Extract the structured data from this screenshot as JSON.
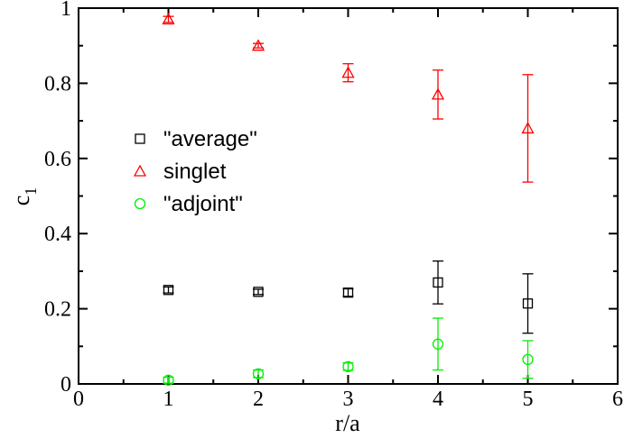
{
  "chart_data": {
    "type": "scatter",
    "xlabel": "r/a",
    "ylabel_main": "c",
    "ylabel_sub": "1",
    "xlim": [
      0,
      6
    ],
    "ylim": [
      0,
      1
    ],
    "xticks": [
      0,
      1,
      2,
      3,
      4,
      5,
      6
    ],
    "yticks": [
      0,
      0.2,
      0.4,
      0.6,
      0.8,
      1
    ],
    "xtick_labels": [
      "0",
      "1",
      "2",
      "3",
      "4",
      "5",
      "6"
    ],
    "ytick_labels": [
      "0",
      "0.2",
      "0.4",
      "0.6",
      "0.8",
      "1"
    ],
    "grid": false,
    "legend_placement": "center-left",
    "series": [
      {
        "name": "\"average\"",
        "marker": "square",
        "color": "#000000",
        "x": [
          1,
          2,
          3,
          4,
          5
        ],
        "y": [
          0.25,
          0.245,
          0.243,
          0.27,
          0.214
        ],
        "err": [
          0.008,
          0.007,
          0.01,
          0.057,
          0.079
        ]
      },
      {
        "name": "singlet",
        "marker": "triangle",
        "color": "#ff0000",
        "x": [
          1,
          2,
          3,
          4,
          5
        ],
        "y": [
          0.97,
          0.9,
          0.828,
          0.77,
          0.68
        ],
        "err": [
          0.008,
          0.006,
          0.024,
          0.065,
          0.143
        ]
      },
      {
        "name": "\"adjoint\"",
        "marker": "circle",
        "color": "#00ee00",
        "x": [
          1,
          2,
          3,
          4,
          5
        ],
        "y": [
          0.01,
          0.027,
          0.046,
          0.106,
          0.065
        ],
        "err": [
          0.008,
          0.01,
          0.01,
          0.069,
          0.05
        ]
      }
    ]
  }
}
